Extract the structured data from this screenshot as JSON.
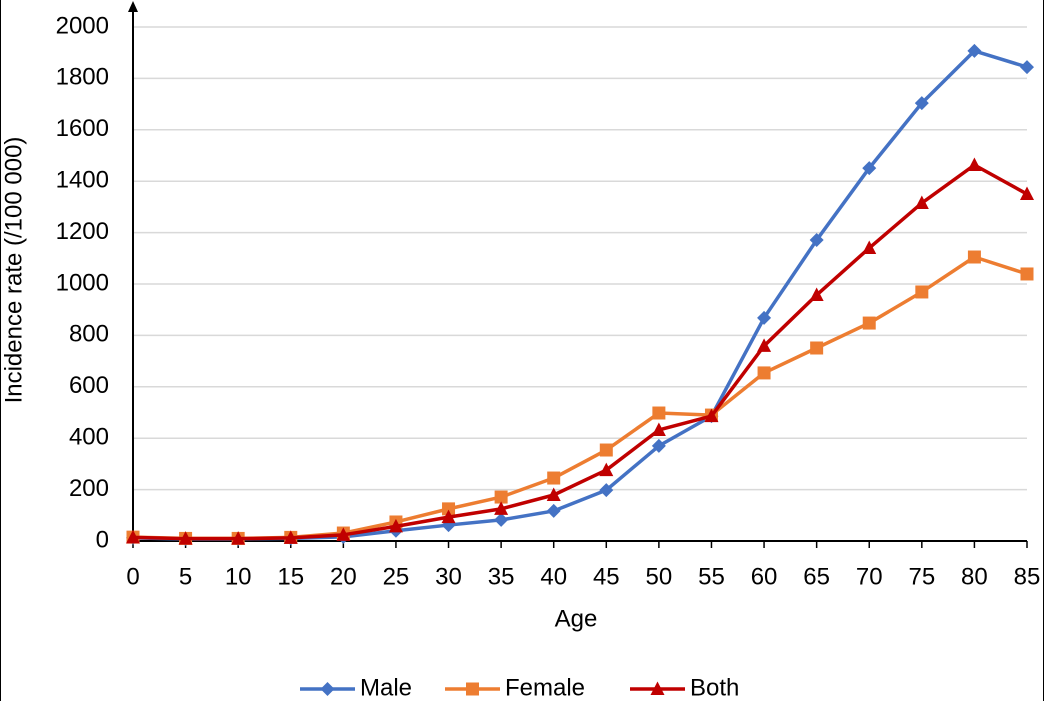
{
  "chart_data": {
    "type": "line",
    "x_label": "Age",
    "y_label": "Incidence rate (/100 000)",
    "x": [
      0,
      5,
      10,
      15,
      20,
      25,
      30,
      35,
      40,
      45,
      50,
      55,
      60,
      65,
      70,
      75,
      80,
      85
    ],
    "xlim": [
      0,
      85
    ],
    "xticks": [
      0,
      5,
      10,
      15,
      20,
      25,
      30,
      35,
      40,
      45,
      50,
      55,
      60,
      65,
      70,
      75,
      80,
      85
    ],
    "ylim": [
      0,
      2000
    ],
    "yticks": [
      0,
      200,
      400,
      600,
      800,
      1000,
      1200,
      1400,
      1600,
      1800,
      2000
    ],
    "grid": true,
    "legend": "bottom",
    "series": [
      {
        "name": "Male",
        "color": "#4472c4",
        "marker": "diamond",
        "values": [
          12,
          8,
          8,
          10,
          16,
          40,
          62,
          82,
          117,
          198,
          370,
          486,
          868,
          1171,
          1451,
          1704,
          1907,
          1844
        ]
      },
      {
        "name": "Female",
        "color": "#ed7d31",
        "marker": "square",
        "values": [
          15,
          10,
          10,
          14,
          31,
          74,
          125,
          171,
          245,
          354,
          498,
          490,
          654,
          751,
          848,
          969,
          1105,
          1039
        ]
      },
      {
        "name": "Both",
        "color": "#c00000",
        "marker": "triangle",
        "values": [
          14,
          9,
          9,
          12,
          24,
          57,
          93,
          125,
          179,
          276,
          432,
          486,
          759,
          957,
          1140,
          1315,
          1463,
          1350
        ]
      }
    ]
  }
}
